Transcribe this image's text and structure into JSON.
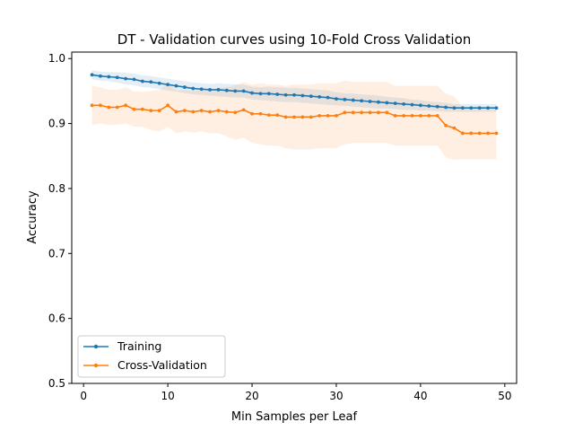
{
  "chart_data": {
    "type": "line",
    "title": "DT - Validation curves using 10-Fold Cross Validation",
    "xlabel": "Min Samples per Leaf",
    "ylabel": "Accuracy",
    "xlim": [
      -1.4,
      51.4
    ],
    "ylim": [
      0.5,
      1.01
    ],
    "xticks": [
      0,
      10,
      20,
      30,
      40,
      50
    ],
    "xtick_labels": [
      "0",
      "10",
      "20",
      "30",
      "40",
      "50"
    ],
    "yticks": [
      0.5,
      0.6,
      0.7,
      0.8,
      0.9,
      1.0
    ],
    "ytick_labels": [
      "0.5",
      "0.6",
      "0.7",
      "0.8",
      "0.9",
      "1.0"
    ],
    "grid": false,
    "legend_position": "lower-left",
    "x": [
      1,
      2,
      3,
      4,
      5,
      6,
      7,
      8,
      9,
      10,
      11,
      12,
      13,
      14,
      15,
      16,
      17,
      18,
      19,
      20,
      21,
      22,
      23,
      24,
      25,
      26,
      27,
      28,
      29,
      30,
      31,
      32,
      33,
      34,
      35,
      36,
      37,
      38,
      39,
      40,
      41,
      42,
      43,
      44,
      45,
      46,
      47,
      48,
      49
    ],
    "series": [
      {
        "name": "Training",
        "color": "#1f77b4",
        "values": [
          0.975,
          0.973,
          0.972,
          0.971,
          0.969,
          0.968,
          0.965,
          0.964,
          0.962,
          0.96,
          0.958,
          0.956,
          0.954,
          0.953,
          0.952,
          0.952,
          0.951,
          0.95,
          0.95,
          0.947,
          0.946,
          0.946,
          0.945,
          0.944,
          0.944,
          0.943,
          0.942,
          0.941,
          0.94,
          0.938,
          0.937,
          0.936,
          0.935,
          0.934,
          0.933,
          0.932,
          0.931,
          0.93,
          0.929,
          0.928,
          0.927,
          0.926,
          0.925,
          0.924,
          0.924,
          0.924,
          0.924,
          0.924,
          0.924
        ],
        "lower": [
          0.968,
          0.966,
          0.965,
          0.963,
          0.96,
          0.959,
          0.956,
          0.955,
          0.953,
          0.951,
          0.949,
          0.947,
          0.945,
          0.944,
          0.943,
          0.942,
          0.941,
          0.94,
          0.94,
          0.937,
          0.936,
          0.935,
          0.934,
          0.933,
          0.933,
          0.932,
          0.931,
          0.93,
          0.929,
          0.928,
          0.927,
          0.926,
          0.925,
          0.924,
          0.923,
          0.923,
          0.922,
          0.921,
          0.921,
          0.92,
          0.92,
          0.919,
          0.918,
          0.918,
          0.918,
          0.918,
          0.918,
          0.918,
          0.918
        ],
        "upper": [
          0.982,
          0.98,
          0.979,
          0.979,
          0.978,
          0.977,
          0.974,
          0.973,
          0.971,
          0.969,
          0.967,
          0.965,
          0.963,
          0.962,
          0.961,
          0.962,
          0.961,
          0.96,
          0.96,
          0.957,
          0.956,
          0.957,
          0.956,
          0.955,
          0.955,
          0.954,
          0.953,
          0.952,
          0.951,
          0.948,
          0.947,
          0.946,
          0.945,
          0.944,
          0.943,
          0.941,
          0.94,
          0.939,
          0.937,
          0.936,
          0.934,
          0.933,
          0.932,
          0.93,
          0.93,
          0.93,
          0.93,
          0.93,
          0.93
        ]
      },
      {
        "name": "Cross-Validation",
        "color": "#ff7f0e",
        "values": [
          0.928,
          0.928,
          0.925,
          0.925,
          0.928,
          0.922,
          0.922,
          0.92,
          0.92,
          0.928,
          0.918,
          0.92,
          0.918,
          0.92,
          0.918,
          0.92,
          0.918,
          0.917,
          0.921,
          0.915,
          0.915,
          0.913,
          0.913,
          0.91,
          0.91,
          0.91,
          0.91,
          0.912,
          0.912,
          0.912,
          0.917,
          0.917,
          0.917,
          0.917,
          0.917,
          0.917,
          0.912,
          0.912,
          0.912,
          0.912,
          0.912,
          0.912,
          0.897,
          0.893,
          0.885,
          0.885,
          0.885,
          0.885,
          0.885
        ],
        "lower": [
          0.898,
          0.9,
          0.898,
          0.898,
          0.9,
          0.895,
          0.895,
          0.89,
          0.888,
          0.895,
          0.885,
          0.888,
          0.886,
          0.888,
          0.885,
          0.885,
          0.88,
          0.875,
          0.878,
          0.87,
          0.868,
          0.866,
          0.866,
          0.862,
          0.86,
          0.86,
          0.86,
          0.862,
          0.862,
          0.862,
          0.868,
          0.87,
          0.87,
          0.87,
          0.87,
          0.87,
          0.866,
          0.866,
          0.866,
          0.866,
          0.866,
          0.866,
          0.848,
          0.844,
          0.845,
          0.845,
          0.845,
          0.845,
          0.845
        ],
        "upper": [
          0.958,
          0.956,
          0.952,
          0.952,
          0.956,
          0.949,
          0.949,
          0.95,
          0.952,
          0.961,
          0.951,
          0.952,
          0.95,
          0.952,
          0.951,
          0.955,
          0.956,
          0.959,
          0.964,
          0.96,
          0.962,
          0.96,
          0.96,
          0.958,
          0.96,
          0.96,
          0.96,
          0.962,
          0.962,
          0.962,
          0.966,
          0.964,
          0.964,
          0.964,
          0.964,
          0.964,
          0.958,
          0.958,
          0.958,
          0.958,
          0.958,
          0.958,
          0.946,
          0.942,
          0.925,
          0.925,
          0.925,
          0.925,
          0.925
        ]
      }
    ]
  }
}
